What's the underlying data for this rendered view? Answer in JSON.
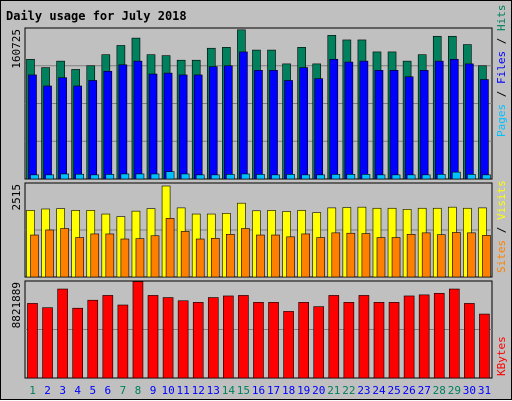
{
  "colors": {
    "background": "#c0c0c0",
    "title": "#0000ff",
    "hits": "#00805c",
    "files": "#0000ff",
    "pages": "#00c0ff",
    "visits": "#ffff00",
    "sites": "#ff8000",
    "kbytes": "#ff0000",
    "weekend_label": "#00805c",
    "weekday_label": "#0000ff",
    "divider": "#000000"
  },
  "chart_data": [
    {
      "type": "bar",
      "title": "Daily usage for July 2018",
      "ylabel_top": "160725",
      "legend": [
        {
          "name": "Pages",
          "color": "#00c0ff"
        },
        {
          "name": "Files",
          "color": "#0000ff"
        },
        {
          "name": "Hits",
          "color": "#00805c"
        }
      ],
      "ylim": [
        0,
        160725
      ],
      "categories": [
        "1",
        "2",
        "3",
        "4",
        "5",
        "6",
        "7",
        "8",
        "9",
        "10",
        "11",
        "12",
        "13",
        "14",
        "15",
        "16",
        "17",
        "18",
        "19",
        "20",
        "21",
        "22",
        "23",
        "24",
        "25",
        "26",
        "27",
        "28",
        "29",
        "30",
        "31"
      ],
      "weekend": [
        1,
        7,
        8,
        14,
        15,
        21,
        22,
        28,
        29
      ],
      "series": [
        {
          "name": "Hits",
          "values": [
            130000,
            121000,
            128000,
            119000,
            123000,
            135000,
            145000,
            153000,
            135000,
            134000,
            129000,
            129000,
            142000,
            143000,
            162000,
            140000,
            140000,
            125000,
            143000,
            125000,
            156000,
            151000,
            151000,
            138000,
            138000,
            128000,
            135000,
            155000,
            155000,
            146000,
            123000
          ]
        },
        {
          "name": "Files",
          "values": [
            113000,
            101000,
            110000,
            101000,
            107000,
            117000,
            124000,
            128000,
            114000,
            115000,
            113000,
            113000,
            122000,
            123000,
            138000,
            118000,
            118000,
            107000,
            121000,
            109000,
            130000,
            127000,
            128000,
            118000,
            118000,
            111000,
            118000,
            128000,
            130000,
            125000,
            108000
          ]
        },
        {
          "name": "Pages",
          "values": [
            4500,
            4500,
            5500,
            5200,
            4500,
            5000,
            5500,
            5500,
            5500,
            8000,
            5500,
            4500,
            4500,
            5000,
            5500,
            5000,
            4500,
            5000,
            4500,
            4500,
            5000,
            5000,
            5000,
            4500,
            4500,
            4500,
            4500,
            5000,
            7500,
            5000,
            4500
          ]
        }
      ]
    },
    {
      "type": "bar",
      "ylabel_top": "2515",
      "legend": [
        {
          "name": "Sites",
          "color": "#ff8000"
        },
        {
          "name": "Visits",
          "color": "#ffff00"
        }
      ],
      "ylim": [
        0,
        2515
      ],
      "series": [
        {
          "name": "Visits",
          "values": [
            1840,
            1880,
            1890,
            1840,
            1840,
            1740,
            1670,
            1820,
            1890,
            2515,
            1910,
            1740,
            1740,
            1760,
            2040,
            1830,
            1840,
            1810,
            1840,
            1780,
            1910,
            1920,
            1930,
            1900,
            1900,
            1870,
            1900,
            1900,
            1930,
            1900,
            1910
          ]
        },
        {
          "name": "Sites",
          "values": [
            1160,
            1300,
            1340,
            1090,
            1190,
            1190,
            1050,
            1060,
            1140,
            1620,
            1260,
            1050,
            1070,
            1180,
            1340,
            1160,
            1160,
            1110,
            1190,
            1090,
            1220,
            1210,
            1200,
            1090,
            1090,
            1180,
            1220,
            1170,
            1230,
            1220,
            1150
          ]
        }
      ]
    },
    {
      "type": "bar",
      "ylabel_top": "8821889",
      "legend": [
        {
          "name": "KBytes",
          "color": "#ff0000"
        }
      ],
      "ylim": [
        0,
        8821889
      ],
      "series": [
        {
          "name": "KBytes",
          "values": [
            7000000,
            6600000,
            8350000,
            6550000,
            7300000,
            7750000,
            6850000,
            9050000,
            7750000,
            7550000,
            7250000,
            7100000,
            7550000,
            7700000,
            7750000,
            7100000,
            7100000,
            6250000,
            7100000,
            6700000,
            7750000,
            7100000,
            7750000,
            7100000,
            7100000,
            7700000,
            7800000,
            7950000,
            8350000,
            7000000,
            6000000
          ]
        }
      ]
    }
  ]
}
